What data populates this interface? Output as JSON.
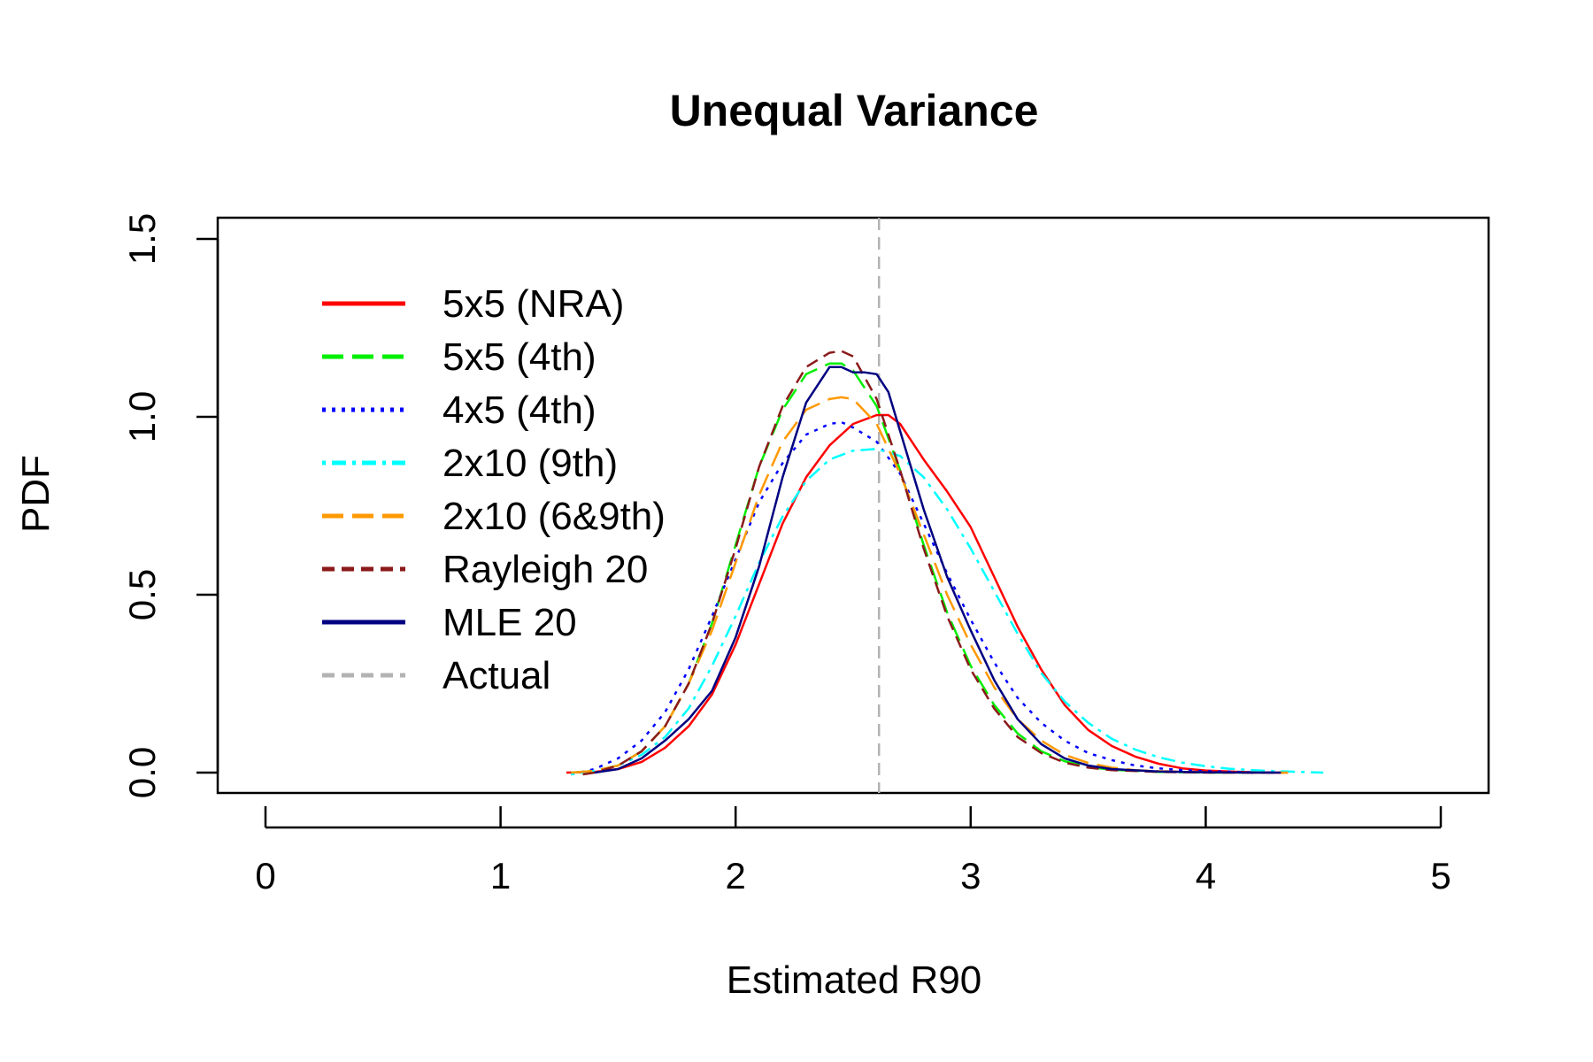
{
  "chart_data": {
    "type": "line",
    "title": "Unequal Variance",
    "xlabel": "Estimated R90",
    "ylabel": "PDF",
    "xlim": [
      0,
      5
    ],
    "ylim": [
      0,
      1.5
    ],
    "x_ticks": [
      "0",
      "1",
      "2",
      "3",
      "4",
      "5"
    ],
    "y_ticks": [
      "0.0",
      "0.5",
      "1.0",
      "1.5"
    ],
    "grid": false,
    "legend_position": "top-left",
    "reference_line": {
      "name": "Actual",
      "x": 2.61,
      "color": "#b3b3b3",
      "dash": "dashed"
    },
    "series": [
      {
        "name": "5x5 (NRA)",
        "color": "#ff0000",
        "dash": "solid",
        "x": [
          1.28,
          1.4,
          1.5,
          1.6,
          1.7,
          1.8,
          1.9,
          2.0,
          2.1,
          2.2,
          2.3,
          2.4,
          2.5,
          2.6,
          2.65,
          2.7,
          2.8,
          2.9,
          3.0,
          3.1,
          3.2,
          3.3,
          3.4,
          3.5,
          3.6,
          3.7,
          3.8,
          3.9,
          4.0,
          4.1,
          4.2,
          4.3,
          4.35
        ],
        "y": [
          0.0,
          0.002,
          0.01,
          0.03,
          0.07,
          0.13,
          0.22,
          0.36,
          0.53,
          0.7,
          0.83,
          0.92,
          0.98,
          1.005,
          1.005,
          0.98,
          0.88,
          0.79,
          0.69,
          0.55,
          0.41,
          0.29,
          0.19,
          0.12,
          0.075,
          0.045,
          0.025,
          0.012,
          0.006,
          0.003,
          0.001,
          0.0,
          0.0
        ]
      },
      {
        "name": "5x5 (4th)",
        "color": "#00ee00",
        "dash": "longdash",
        "x": [
          1.3,
          1.4,
          1.5,
          1.6,
          1.7,
          1.8,
          1.9,
          2.0,
          2.1,
          2.2,
          2.3,
          2.4,
          2.45,
          2.5,
          2.6,
          2.7,
          2.8,
          2.9,
          3.0,
          3.1,
          3.2,
          3.3,
          3.4,
          3.5,
          3.6,
          3.8,
          4.0,
          4.2
        ],
        "y": [
          0.0,
          0.005,
          0.02,
          0.06,
          0.13,
          0.25,
          0.42,
          0.64,
          0.86,
          1.02,
          1.12,
          1.15,
          1.15,
          1.13,
          1.03,
          0.85,
          0.64,
          0.45,
          0.3,
          0.19,
          0.11,
          0.06,
          0.032,
          0.016,
          0.008,
          0.002,
          0.0,
          0.0
        ]
      },
      {
        "name": "4x5 (4th)",
        "color": "#0000ff",
        "dash": "dotted",
        "x": [
          1.3,
          1.4,
          1.5,
          1.6,
          1.7,
          1.8,
          1.9,
          2.0,
          2.1,
          2.2,
          2.3,
          2.4,
          2.45,
          2.5,
          2.6,
          2.7,
          2.8,
          2.9,
          3.0,
          3.1,
          3.2,
          3.3,
          3.4,
          3.5,
          3.6,
          3.7,
          3.8,
          3.9,
          4.0,
          4.2,
          4.3
        ],
        "y": [
          -0.005,
          0.01,
          0.04,
          0.09,
          0.17,
          0.29,
          0.44,
          0.6,
          0.76,
          0.87,
          0.95,
          0.98,
          0.985,
          0.97,
          0.93,
          0.84,
          0.7,
          0.56,
          0.43,
          0.31,
          0.21,
          0.14,
          0.09,
          0.055,
          0.035,
          0.02,
          0.012,
          0.007,
          0.004,
          0.001,
          0.0
        ]
      },
      {
        "name": "2x10 (9th)",
        "color": "#00ffff",
        "dash": "dotdash",
        "x": [
          1.3,
          1.4,
          1.5,
          1.6,
          1.7,
          1.8,
          1.9,
          2.0,
          2.1,
          2.2,
          2.3,
          2.4,
          2.5,
          2.6,
          2.7,
          2.8,
          2.9,
          3.0,
          3.1,
          3.2,
          3.3,
          3.4,
          3.5,
          3.6,
          3.7,
          3.8,
          3.9,
          4.0,
          4.1,
          4.2,
          4.3,
          4.4,
          4.5
        ],
        "y": [
          -0.005,
          0.005,
          0.02,
          0.05,
          0.1,
          0.18,
          0.3,
          0.44,
          0.59,
          0.72,
          0.82,
          0.88,
          0.905,
          0.91,
          0.89,
          0.83,
          0.74,
          0.63,
          0.51,
          0.39,
          0.28,
          0.2,
          0.14,
          0.095,
          0.065,
          0.043,
          0.028,
          0.018,
          0.011,
          0.007,
          0.004,
          0.002,
          0.0
        ]
      },
      {
        "name": "2x10 (6&9th)",
        "color": "#ff9900",
        "dash": "longdash",
        "x": [
          1.3,
          1.4,
          1.5,
          1.6,
          1.7,
          1.8,
          1.9,
          2.0,
          2.1,
          2.2,
          2.3,
          2.4,
          2.45,
          2.5,
          2.6,
          2.7,
          2.8,
          2.9,
          3.0,
          3.1,
          3.2,
          3.3,
          3.4,
          3.5,
          3.6,
          3.7,
          3.8,
          4.0,
          4.2,
          4.35
        ],
        "y": [
          0.0,
          0.005,
          0.02,
          0.06,
          0.13,
          0.25,
          0.4,
          0.59,
          0.78,
          0.93,
          1.02,
          1.05,
          1.055,
          1.05,
          0.98,
          0.84,
          0.67,
          0.5,
          0.36,
          0.24,
          0.15,
          0.09,
          0.05,
          0.027,
          0.014,
          0.007,
          0.004,
          0.001,
          0.0,
          0.0
        ]
      },
      {
        "name": "Rayleigh 20",
        "color": "#8b1a1a",
        "dash": "dashed",
        "x": [
          1.35,
          1.4,
          1.5,
          1.6,
          1.7,
          1.8,
          1.9,
          2.0,
          2.1,
          2.2,
          2.3,
          2.4,
          2.45,
          2.5,
          2.6,
          2.7,
          2.8,
          2.9,
          3.0,
          3.1,
          3.2,
          3.3,
          3.4,
          3.5,
          3.6,
          3.8,
          4.0,
          4.3
        ],
        "y": [
          -0.005,
          0.0,
          0.02,
          0.06,
          0.13,
          0.25,
          0.42,
          0.63,
          0.86,
          1.03,
          1.14,
          1.18,
          1.185,
          1.17,
          1.05,
          0.85,
          0.63,
          0.44,
          0.29,
          0.18,
          0.1,
          0.055,
          0.028,
          0.014,
          0.007,
          0.002,
          0.0,
          0.0
        ]
      },
      {
        "name": "MLE 20",
        "color": "#000080",
        "dash": "solid",
        "x": [
          1.4,
          1.5,
          1.6,
          1.7,
          1.8,
          1.9,
          2.0,
          2.1,
          2.2,
          2.3,
          2.4,
          2.45,
          2.5,
          2.55,
          2.6,
          2.65,
          2.7,
          2.8,
          2.9,
          3.0,
          3.1,
          3.2,
          3.3,
          3.4,
          3.5,
          3.6,
          3.8,
          4.0,
          4.2,
          4.32
        ],
        "y": [
          0.0,
          0.01,
          0.04,
          0.09,
          0.15,
          0.23,
          0.38,
          0.58,
          0.83,
          1.04,
          1.14,
          1.14,
          1.125,
          1.125,
          1.12,
          1.07,
          0.96,
          0.74,
          0.55,
          0.4,
          0.26,
          0.15,
          0.08,
          0.04,
          0.02,
          0.01,
          0.003,
          0.001,
          0.0,
          0.0
        ]
      }
    ]
  }
}
